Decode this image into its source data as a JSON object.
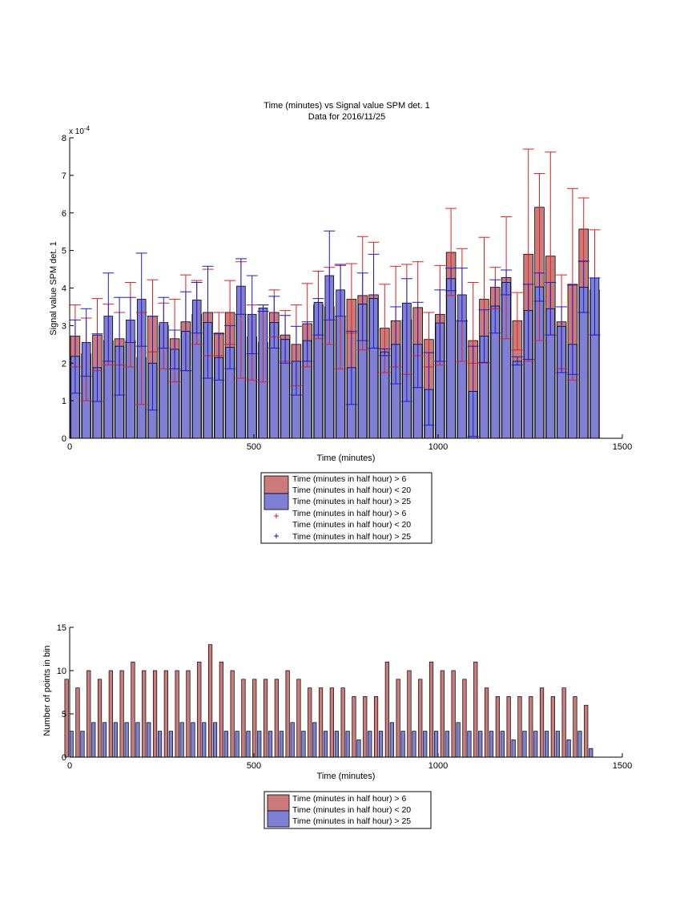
{
  "colors": {
    "red_fill": "#cc7a7a",
    "blue_fill": "#7f7fd5",
    "red_err": "#e02020",
    "blue_err": "#1a1ad0",
    "axis": "#000000"
  },
  "chart_data": [
    {
      "type": "bar",
      "title": "Time (minutes) vs Signal value SPM det. 1",
      "subtitle": "Data for 2016/11/25",
      "xlabel": "Time (minutes)",
      "ylabel": "Signal value SPM det. 1",
      "y_exponent_label": "x 10",
      "y_exponent_power": "-4",
      "xlim": [
        0,
        1500
      ],
      "ylim": [
        0,
        8
      ],
      "xticks": [
        0,
        500,
        1000,
        1500
      ],
      "yticks": [
        0,
        1,
        2,
        3,
        4,
        5,
        6,
        7,
        8
      ],
      "grid": false,
      "legend_position": "below",
      "legend": [
        "Time (minutes in half hour) > 6",
        "Time (minutes in half hour) < 20",
        "Time (minutes in half hour) > 25",
        "Time (minutes in half hour) > 6",
        "Time (minutes in half hour) < 20",
        "Time (minutes in half hour) > 25"
      ],
      "x": [
        15,
        45,
        75,
        105,
        135,
        165,
        195,
        225,
        255,
        285,
        315,
        345,
        375,
        405,
        435,
        465,
        495,
        525,
        555,
        585,
        615,
        645,
        675,
        705,
        735,
        765,
        795,
        825,
        855,
        885,
        915,
        945,
        975,
        1005,
        1035,
        1065,
        1095,
        1125,
        1155,
        1185,
        1215,
        1245,
        1275,
        1305,
        1335,
        1365,
        1395,
        1425
      ],
      "series": [
        {
          "values": [
            2.72,
            2.25,
            2.75,
            2.6,
            2.65,
            2.6,
            2.15,
            3.25,
            3.0,
            2.65,
            3.1,
            3.3,
            3.35,
            2.8,
            3.35,
            3.3,
            2.7,
            2.55,
            3.35,
            2.75,
            2.5,
            3.05,
            3.55,
            3.5,
            3.25,
            3.7,
            3.8,
            3.82,
            2.93,
            3.13,
            3.15,
            3.48,
            2.63,
            3.3,
            4.95,
            3.15,
            2.6,
            3.7,
            4.02,
            4.28,
            3.13,
            4.9,
            6.15,
            4.85,
            3.1,
            4.1,
            5.57,
            3.95
          ],
          "err_low": [
            1.9,
            1.0,
            1.8,
            1.95,
            1.95,
            1.9,
            0.9,
            2.3,
            1.85,
            1.5,
            1.8,
            2.5,
            2.2,
            2.2,
            2.5,
            1.6,
            1.55,
            1.5,
            2.7,
            2.05,
            1.4,
            1.9,
            2.65,
            2.5,
            1.85,
            2.8,
            2.35,
            2.4,
            1.75,
            1.9,
            1.7,
            2.2,
            1.9,
            1.95,
            3.8,
            2.05,
            2.0,
            2.0,
            3.45,
            2.65,
            2.35,
            2.05,
            2.6,
            2.75,
            1.85,
            1.55,
            4.7,
            2.75
          ],
          "err_high": [
            3.55,
            3.2,
            3.72,
            3.57,
            3.35,
            4.15,
            3.35,
            4.22,
            3.6,
            3.7,
            4.35,
            4.2,
            4.5,
            3.35,
            4.2,
            4.7,
            3.55,
            3.55,
            3.95,
            3.4,
            3.55,
            4.12,
            4.45,
            4.55,
            4.6,
            4.65,
            5.37,
            5.22,
            4.1,
            4.58,
            4.63,
            4.7,
            3.35,
            4.6,
            6.12,
            5.05,
            4.15,
            5.35,
            4.55,
            5.9,
            3.88,
            7.7,
            7.05,
            7.62,
            4.35,
            6.65,
            6.4,
            5.55
          ],
          "name": "Time (minutes in half hour) > 6"
        },
        {
          "values": [
            2.18,
            2.55,
            1.88,
            3.25,
            2.45,
            3.15,
            3.7,
            2.0,
            3.08,
            2.37,
            2.85,
            3.68,
            3.08,
            2.15,
            2.42,
            4.05,
            3.3,
            3.47,
            3.08,
            2.63,
            2.05,
            2.6,
            3.62,
            4.33,
            3.95,
            1.88,
            3.57,
            3.72,
            2.3,
            2.5,
            3.6,
            2.5,
            1.3,
            3.07,
            4.25,
            3.82,
            1.25,
            2.72,
            3.52,
            4.15,
            2.05,
            3.4,
            4.03,
            3.45,
            2.98,
            2.5,
            4.02,
            4.27
          ],
          "err_low": [
            1.2,
            1.65,
            0.98,
            2.05,
            1.15,
            2.55,
            2.45,
            0.75,
            2.4,
            1.85,
            1.8,
            2.8,
            1.6,
            1.55,
            1.85,
            3.3,
            2.25,
            3.38,
            2.4,
            2.0,
            1.15,
            2.05,
            2.75,
            3.15,
            3.25,
            0.9,
            2.6,
            2.4,
            2.2,
            1.45,
            0.98,
            1.35,
            0.35,
            2.05,
            3.93,
            3.12,
            0.05,
            2.02,
            2.8,
            3.82,
            1.95,
            2.1,
            3.65,
            2.75,
            1.75,
            1.7,
            3.35,
            2.75
          ],
          "err_high": [
            3.15,
            3.45,
            2.78,
            4.4,
            3.75,
            3.75,
            4.93,
            3.25,
            3.75,
            2.88,
            3.9,
            4.15,
            4.58,
            2.78,
            3.0,
            4.78,
            4.33,
            3.55,
            3.78,
            3.27,
            2.98,
            3.1,
            3.72,
            5.52,
            4.63,
            2.85,
            4.4,
            4.9,
            2.38,
            3.5,
            4.25,
            3.62,
            2.28,
            3.95,
            4.53,
            4.53,
            2.45,
            3.42,
            4.22,
            4.48,
            2.17,
            4.1,
            4.4,
            4.15,
            3.5,
            4.08,
            4.72,
            4.27
          ],
          "name": "Time (minutes in half hour) > 25"
        }
      ]
    },
    {
      "type": "bar",
      "xlabel": "Time (minutes)",
      "ylabel": "Number of points in bin",
      "xlim": [
        0,
        1500
      ],
      "ylim": [
        0,
        15
      ],
      "xticks": [
        0,
        500,
        1000,
        1500
      ],
      "yticks": [
        0,
        5,
        10,
        15
      ],
      "grid": false,
      "legend_position": "below",
      "legend": [
        "Time (minutes in half hour) > 6",
        "Time (minutes in half hour) < 20",
        "Time (minutes in half hour) > 25"
      ],
      "x": [
        15,
        45,
        75,
        105,
        135,
        165,
        195,
        225,
        255,
        285,
        315,
        345,
        375,
        405,
        435,
        465,
        495,
        525,
        555,
        585,
        615,
        645,
        675,
        705,
        735,
        765,
        795,
        825,
        855,
        885,
        915,
        945,
        975,
        1005,
        1035,
        1065,
        1095,
        1125,
        1155,
        1185,
        1215,
        1245,
        1275,
        1305,
        1335,
        1365,
        1395,
        1425
      ],
      "series": [
        {
          "values": [
            9,
            8,
            10,
            9,
            10,
            10,
            11,
            10,
            10,
            10,
            10,
            10,
            11,
            13,
            11,
            10,
            9,
            9,
            9,
            9,
            10,
            9,
            8,
            8,
            8,
            8,
            7,
            7,
            7,
            11,
            9,
            10,
            9,
            11,
            10,
            10,
            9,
            11,
            8,
            7,
            7,
            7,
            7,
            8,
            7,
            8,
            7,
            6
          ],
          "name": "Time (minutes in half hour) > 6"
        },
        {
          "values": [
            3,
            3,
            4,
            4,
            4,
            4,
            4,
            4,
            3,
            3,
            4,
            4,
            4,
            4,
            3,
            3,
            3,
            3,
            3,
            3,
            4,
            3,
            4,
            3,
            3,
            3,
            2,
            3,
            3,
            4,
            3,
            3,
            3,
            3,
            3,
            4,
            3,
            3,
            3,
            3,
            2,
            3,
            3,
            3,
            3,
            2,
            3,
            1
          ],
          "name": "Time (minutes in half hour) > 25"
        }
      ]
    }
  ]
}
